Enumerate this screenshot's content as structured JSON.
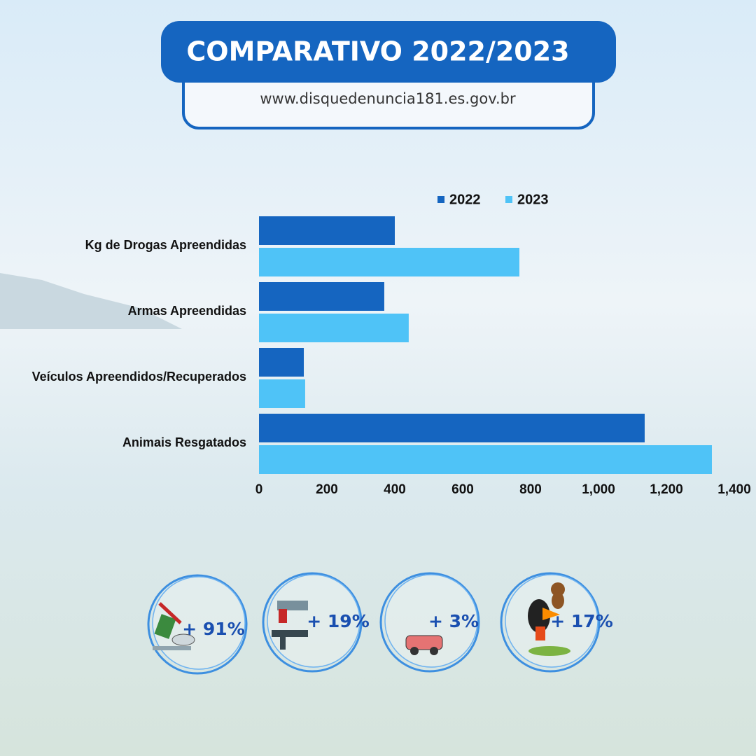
{
  "header": {
    "title": "COMPARATIVO 2022/2023",
    "url": "www.disquedenuncia181.es.gov.br"
  },
  "chart_data": {
    "type": "hbar",
    "categories": [
      "Kg de Drogas Apreendidas",
      "Armas Apreendidas",
      "Veículos Apreendidos/Recuperados",
      "Animais Resgatados"
    ],
    "series": [
      {
        "name": "2022",
        "color": "#1565c0",
        "values": [
          400,
          369,
          132,
          1136
        ]
      },
      {
        "name": "2023",
        "color": "#4fc3f7",
        "values": [
          767,
          441,
          136,
          1334
        ]
      }
    ],
    "xlim": [
      0,
      1400
    ],
    "xticks": [
      0,
      200,
      400,
      600,
      800,
      {
        "value": 1000,
        "label": "1,000"
      },
      {
        "value": 1200,
        "label": "1,200"
      },
      {
        "value": 1400,
        "label": "1,400"
      }
    ],
    "legend": "top-right"
  },
  "badges": [
    {
      "label": "+ 91%"
    },
    {
      "label": "+ 19%"
    },
    {
      "label": "+ 3%"
    },
    {
      "label": "+ 17%"
    }
  ]
}
